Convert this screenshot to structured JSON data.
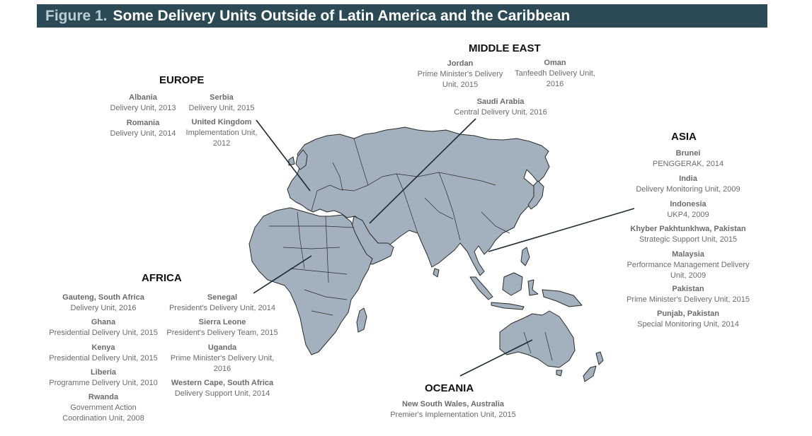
{
  "figure": {
    "label": "Figure 1.",
    "title": "Some Delivery Units Outside of Latin America and the Caribbean"
  },
  "colors": {
    "land": "#a2b1bd",
    "border": "#2b2b2b",
    "title_bg": "#2c4a55",
    "text": "#6b6b6b"
  },
  "regions": {
    "europe": {
      "name": "EUROPE",
      "entries": [
        {
          "country": "Albania",
          "lines": [
            "Delivery Unit, 2013"
          ]
        },
        {
          "country": "Serbia",
          "lines": [
            "Delivery Unit, 2015"
          ]
        },
        {
          "country": "Romania",
          "lines": [
            "Delivery Unit, 2014"
          ]
        },
        {
          "country": "United Kingdom",
          "lines": [
            "Implementation Unit,",
            "2012"
          ]
        }
      ]
    },
    "middle_east": {
      "name": "MIDDLE EAST",
      "entries": [
        {
          "country": "Jordan",
          "lines": [
            "Prime Minister's Delivery",
            "Unit, 2015"
          ]
        },
        {
          "country": "Oman",
          "lines": [
            "Tanfeedh Delivery Unit,",
            "2016"
          ]
        },
        {
          "country": "Saudi Arabia",
          "lines": [
            "Central Delivery Unit, 2016"
          ]
        }
      ]
    },
    "asia": {
      "name": "ASIA",
      "entries": [
        {
          "country": "Brunei",
          "lines": [
            "PENGGERAK, 2014"
          ]
        },
        {
          "country": "India",
          "lines": [
            "Delivery Monitoring Unit, 2009"
          ]
        },
        {
          "country": "Indonesia",
          "lines": [
            "UKP4, 2009"
          ]
        },
        {
          "country": "Khyber Pakhtunkhwa, Pakistan",
          "lines": [
            "Strategic Support Unit, 2015"
          ]
        },
        {
          "country": "Malaysia",
          "lines": [
            "Performance Management Delivery",
            "Unit, 2009"
          ]
        },
        {
          "country": "Pakistan",
          "lines": [
            "Prime Minister's Delivery Unit, 2015"
          ]
        },
        {
          "country": "Punjab, Pakistan",
          "lines": [
            "Special Monitoring Unit, 2014"
          ]
        }
      ]
    },
    "africa": {
      "name": "AFRICA",
      "entries": [
        {
          "country": "Gauteng, South Africa",
          "lines": [
            "Delivery Unit, 2016"
          ]
        },
        {
          "country": "Senegal",
          "lines": [
            "President's Delivery Unit, 2014"
          ]
        },
        {
          "country": "Ghana",
          "lines": [
            "Presidential Delivery Unit, 2015"
          ]
        },
        {
          "country": "Sierra Leone",
          "lines": [
            "President's Delivery Team, 2015"
          ]
        },
        {
          "country": "Kenya",
          "lines": [
            "Presidential Delivery Unit, 2015"
          ]
        },
        {
          "country": "Uganda",
          "lines": [
            "Prime Minister's Delivery Unit,",
            "2016"
          ]
        },
        {
          "country": "Liberia",
          "lines": [
            "Programme Delivery Unit, 2010"
          ]
        },
        {
          "country": "Western Cape, South Africa",
          "lines": [
            "Delivery Support Unit, 2014"
          ]
        },
        {
          "country": "Rwanda",
          "lines": [
            "Government Action",
            "Coordination Unit, 2008"
          ]
        }
      ]
    },
    "oceania": {
      "name": "OCEANIA",
      "entries": [
        {
          "country": "New South Wales, Australia",
          "lines": [
            "Premier's Implementation Unit, 2015"
          ]
        }
      ]
    }
  }
}
